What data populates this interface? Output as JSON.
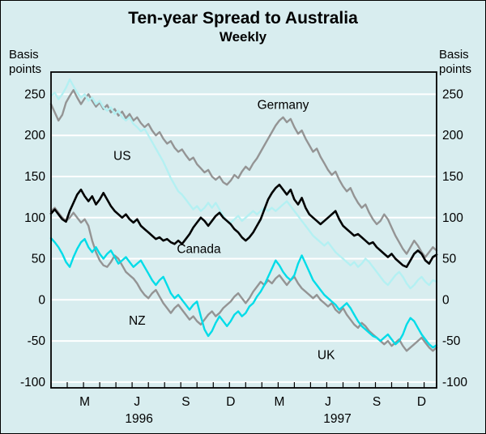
{
  "title": "Ten-year Spread to Australia",
  "subtitle": "Weekly",
  "axis_caption_left": "Basis points",
  "axis_caption_right": "Basis points",
  "colors": {
    "background": "#d8edef",
    "gridline": "#ffffff",
    "frame": "#000000",
    "germany": "#949494",
    "nz": "#949494",
    "us": "#b4f0f2",
    "uk": "#00dce8",
    "canada": "#000000"
  },
  "chart_data": {
    "type": "line",
    "title": "Ten-year Spread to Australia",
    "subtitle": "Weekly",
    "ylabel": "Basis points",
    "ylim": [
      -107,
      277
    ],
    "yticks": [
      250,
      200,
      150,
      100,
      50,
      0,
      -50,
      -100
    ],
    "grid": "horizontal-white",
    "legend_position": "inline-annotations",
    "x_unit": "weeks from Jan 1996",
    "x_range_weeks": [
      0,
      103
    ],
    "xticks": [
      {
        "week": 9,
        "label": "M"
      },
      {
        "week": 23,
        "label": "J"
      },
      {
        "week": 36,
        "label": "S"
      },
      {
        "week": 48,
        "label": "D"
      },
      {
        "week": 61,
        "label": "M"
      },
      {
        "week": 74,
        "label": "J"
      },
      {
        "week": 87,
        "label": "S"
      },
      {
        "week": 99,
        "label": "D"
      }
    ],
    "year_labels": [
      {
        "week": 23.5,
        "label": "1996"
      },
      {
        "week": 76.5,
        "label": "1997"
      }
    ],
    "minor_ticks_months": 25,
    "annotations": [
      {
        "text": "Germany",
        "week": 62,
        "value": 232
      },
      {
        "text": "US",
        "week": 19,
        "value": 170
      },
      {
        "text": "Canada",
        "week": 39.5,
        "value": 57
      },
      {
        "text": "NZ",
        "week": 23,
        "value": -30
      },
      {
        "text": "UK",
        "week": 73.5,
        "value": -72
      }
    ],
    "series": [
      {
        "name": "Germany",
        "color": "#949494",
        "width": 2.4,
        "values": [
          238,
          228,
          218,
          225,
          240,
          248,
          255,
          246,
          238,
          245,
          250,
          242,
          235,
          240,
          232,
          237,
          228,
          232,
          224,
          229,
          221,
          226,
          218,
          222,
          215,
          210,
          214,
          206,
          200,
          204,
          196,
          190,
          193,
          185,
          180,
          183,
          176,
          170,
          173,
          165,
          160,
          155,
          158,
          150,
          146,
          150,
          143,
          140,
          145,
          152,
          148,
          156,
          162,
          158,
          166,
          172,
          180,
          188,
          196,
          204,
          212,
          218,
          222,
          216,
          220,
          210,
          202,
          206,
          196,
          188,
          180,
          184,
          174,
          166,
          158,
          152,
          156,
          146,
          138,
          132,
          136,
          126,
          118,
          112,
          116,
          106,
          98,
          92,
          96,
          104,
          98,
          88,
          78,
          70,
          62,
          56,
          64,
          72,
          66,
          58,
          52,
          58,
          64,
          60
        ]
      },
      {
        "name": "NZ",
        "color": "#949494",
        "width": 2.4,
        "values": [
          108,
          112,
          106,
          100,
          96,
          100,
          106,
          100,
          94,
          98,
          90,
          72,
          58,
          48,
          42,
          40,
          46,
          54,
          50,
          42,
          34,
          30,
          26,
          20,
          12,
          6,
          2,
          8,
          12,
          4,
          -4,
          -10,
          -16,
          -10,
          -6,
          -12,
          -18,
          -24,
          -20,
          -26,
          -30,
          -24,
          -18,
          -14,
          -20,
          -16,
          -10,
          -6,
          -2,
          4,
          8,
          2,
          -4,
          2,
          10,
          16,
          22,
          18,
          24,
          20,
          26,
          30,
          24,
          18,
          24,
          28,
          20,
          14,
          10,
          6,
          2,
          6,
          0,
          -4,
          -8,
          -4,
          -12,
          -16,
          -10,
          -18,
          -24,
          -30,
          -34,
          -28,
          -32,
          -38,
          -42,
          -46,
          -50,
          -54,
          -50,
          -56,
          -52,
          -48,
          -56,
          -62,
          -58,
          -54,
          -50,
          -46,
          -52,
          -58,
          -62,
          -58
        ]
      },
      {
        "name": "US",
        "color": "#b4f0f2",
        "width": 2.4,
        "values": [
          248,
          252,
          244,
          250,
          258,
          268,
          260,
          252,
          246,
          250,
          242,
          246,
          238,
          242,
          234,
          230,
          234,
          226,
          230,
          222,
          218,
          222,
          214,
          210,
          205,
          208,
          200,
          192,
          184,
          176,
          168,
          158,
          148,
          140,
          132,
          128,
          122,
          116,
          110,
          114,
          108,
          112,
          118,
          112,
          118,
          110,
          102,
          96,
          94,
          98,
          102,
          96,
          100,
          104,
          108,
          104,
          108,
          112,
          108,
          112,
          108,
          112,
          116,
          120,
          114,
          108,
          102,
          96,
          90,
          84,
          78,
          74,
          70,
          66,
          70,
          64,
          58,
          54,
          50,
          46,
          42,
          46,
          40,
          44,
          50,
          46,
          40,
          34,
          28,
          22,
          18,
          24,
          30,
          34,
          28,
          20,
          14,
          18,
          24,
          28,
          22,
          18,
          24,
          22
        ]
      },
      {
        "name": "UK",
        "color": "#00dce8",
        "width": 2.4,
        "values": [
          75,
          70,
          64,
          56,
          46,
          40,
          52,
          62,
          70,
          74,
          64,
          58,
          64,
          56,
          50,
          56,
          60,
          52,
          44,
          48,
          52,
          46,
          40,
          44,
          48,
          40,
          32,
          24,
          18,
          24,
          28,
          18,
          8,
          2,
          6,
          0,
          -6,
          -12,
          -6,
          -2,
          -20,
          -36,
          -44,
          -38,
          -28,
          -20,
          -26,
          -32,
          -26,
          -18,
          -14,
          -20,
          -16,
          -8,
          -4,
          4,
          10,
          18,
          28,
          38,
          48,
          42,
          34,
          28,
          24,
          30,
          44,
          54,
          44,
          34,
          24,
          18,
          12,
          6,
          2,
          -2,
          -6,
          -12,
          -8,
          -4,
          -10,
          -18,
          -26,
          -32,
          -36,
          -40,
          -44,
          -46,
          -50,
          -46,
          -42,
          -48,
          -54,
          -50,
          -42,
          -30,
          -22,
          -26,
          -34,
          -42,
          -48,
          -54,
          -58,
          -55
        ]
      },
      {
        "name": "Canada",
        "color": "#000000",
        "width": 2.6,
        "values": [
          105,
          110,
          104,
          98,
          95,
          108,
          118,
          128,
          134,
          126,
          120,
          126,
          116,
          122,
          130,
          122,
          114,
          108,
          104,
          100,
          104,
          98,
          94,
          98,
          90,
          86,
          82,
          78,
          74,
          76,
          72,
          74,
          70,
          68,
          72,
          68,
          74,
          80,
          88,
          94,
          100,
          96,
          90,
          96,
          102,
          106,
          100,
          96,
          92,
          86,
          82,
          76,
          72,
          76,
          82,
          90,
          98,
          110,
          122,
          130,
          136,
          140,
          134,
          128,
          134,
          122,
          116,
          124,
          112,
          104,
          100,
          96,
          92,
          96,
          100,
          104,
          108,
          98,
          90,
          86,
          82,
          78,
          80,
          76,
          72,
          68,
          70,
          64,
          60,
          56,
          52,
          56,
          50,
          46,
          42,
          40,
          48,
          56,
          60,
          56,
          48,
          44,
          52,
          55
        ]
      }
    ]
  }
}
